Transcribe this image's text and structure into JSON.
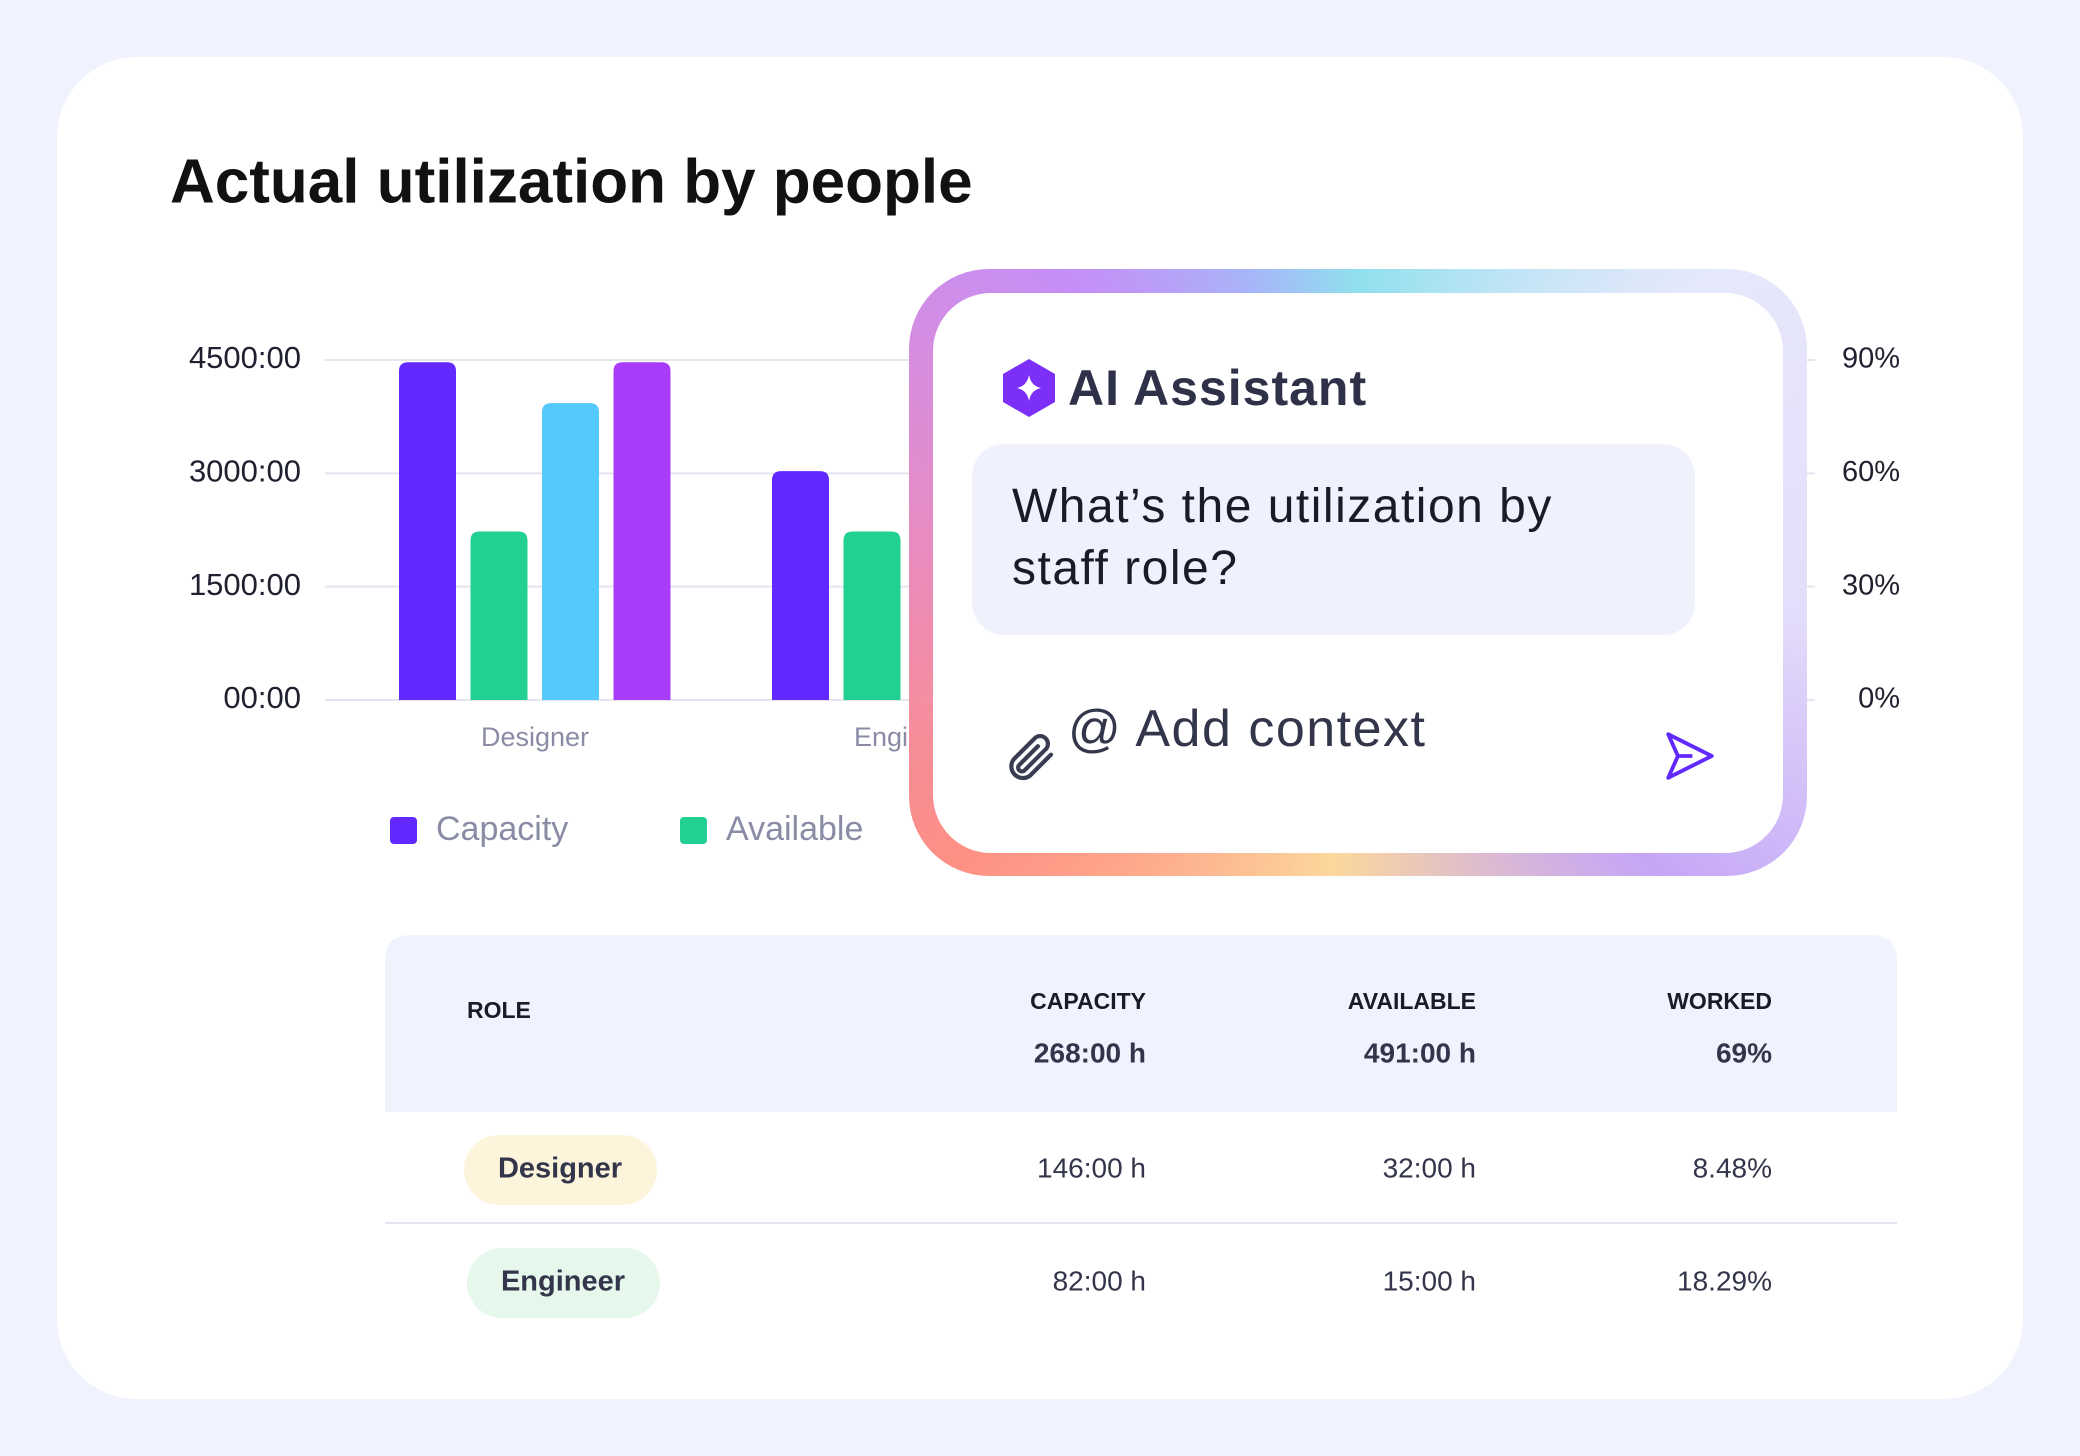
{
  "title": "Actual utilization by people",
  "chart_data": {
    "type": "bar",
    "categories": [
      "Designer",
      "Engineer"
    ],
    "series": [
      {
        "name": "Capacity",
        "color": "#6129fd",
        "values": [
          4470,
          3030
        ]
      },
      {
        "name": "Available",
        "color": "#22d091",
        "values": [
          2230,
          2230
        ]
      },
      {
        "color": "#55c8fc",
        "values": [
          3930,
          null
        ]
      },
      {
        "color": "#a93cfb",
        "values": [
          4470,
          null
        ]
      }
    ],
    "ylim": [
      0,
      4500
    ],
    "yticks": [
      {
        "value": 0,
        "label": "00:00"
      },
      {
        "value": 1500,
        "label": "1500:00"
      },
      {
        "value": 3000,
        "label": "3000:00"
      },
      {
        "value": 4500,
        "label": "4500:00"
      }
    ],
    "y2lim": [
      0,
      90
    ],
    "y2ticks": [
      {
        "value": 0,
        "label": "0%"
      },
      {
        "value": 30,
        "label": "30%"
      },
      {
        "value": 60,
        "label": "60%"
      },
      {
        "value": 90,
        "label": "90%"
      }
    ],
    "grid": true
  },
  "assistant": {
    "title": "AI Assistant",
    "question": [
      "What’s the utilization by",
      "staff role?"
    ],
    "context": "@ Add context"
  },
  "table": {
    "header": {
      "role": "ROLE",
      "columns": [
        {
          "label": "CAPACITY",
          "total": "268:00 h"
        },
        {
          "label": "AVAILABLE",
          "total": "491:00 h"
        },
        {
          "label": "WORKED",
          "total": "69%"
        }
      ]
    },
    "rows": [
      [
        "Designer",
        "146:00 h",
        "32:00 h",
        "8.48%"
      ],
      [
        "Engineer",
        "82:00 h",
        "15:00 h",
        "18.29%"
      ]
    ]
  }
}
